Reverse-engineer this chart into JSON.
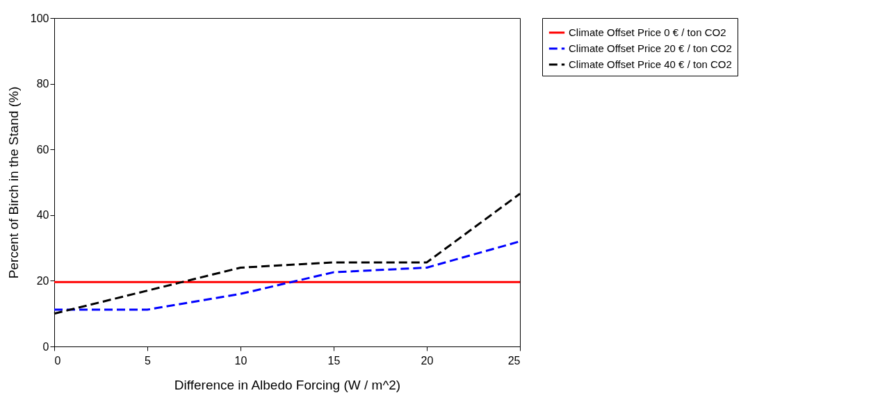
{
  "chart_data": {
    "type": "line",
    "xlabel": "Difference in Albedo Forcing (W / m^2)",
    "ylabel": "Percent of Birch in the Stand (%)",
    "x": [
      0,
      5,
      10,
      15,
      20,
      25
    ],
    "series": [
      {
        "name": "Climate Offset Price 0 € / ton CO2",
        "color": "#ff0000",
        "line_style": "solid",
        "values": [
          19.6,
          19.6,
          19.6,
          19.6,
          19.6,
          19.6
        ]
      },
      {
        "name": "Climate Offset Price 20 € / ton CO2",
        "color": "#0000ff",
        "line_style": "dashed",
        "values": [
          11.2,
          11.2,
          16,
          22.6,
          24,
          32
        ]
      },
      {
        "name": "Climate Offset Price 40 € / ton CO2",
        "color": "#000000",
        "line_style": "dashed",
        "values": [
          10,
          17,
          24,
          25.6,
          25.6,
          46.5
        ]
      }
    ],
    "xlim": [
      0,
      25
    ],
    "xticks": [
      0,
      5,
      10,
      15,
      20,
      25
    ],
    "ylim": [
      0,
      100
    ],
    "yticks": [
      0,
      20,
      40,
      60,
      80,
      100
    ],
    "grid": false,
    "legend": "right",
    "marker": "none"
  }
}
